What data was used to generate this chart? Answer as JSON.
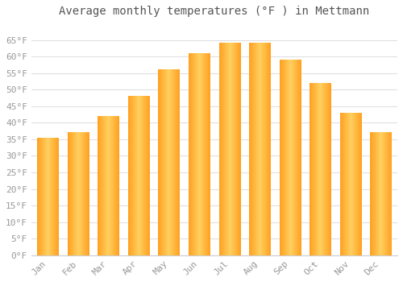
{
  "title": "Average monthly temperatures (°F ) in Mettmann",
  "months": [
    "Jan",
    "Feb",
    "Mar",
    "Apr",
    "May",
    "Jun",
    "Jul",
    "Aug",
    "Sep",
    "Oct",
    "Nov",
    "Dec"
  ],
  "values": [
    35.5,
    37,
    42,
    48,
    56,
    61,
    64,
    64,
    59,
    52,
    43,
    37
  ],
  "bar_color_center": "#FFD060",
  "bar_color_edge": "#FFA020",
  "ylim": [
    0,
    70
  ],
  "yticks": [
    0,
    5,
    10,
    15,
    20,
    25,
    30,
    35,
    40,
    45,
    50,
    55,
    60,
    65
  ],
  "ytick_labels": [
    "0°F",
    "5°F",
    "10°F",
    "15°F",
    "20°F",
    "25°F",
    "30°F",
    "35°F",
    "40°F",
    "45°F",
    "50°F",
    "55°F",
    "60°F",
    "65°F"
  ],
  "grid_color": "#e0e0e0",
  "bg_color": "#ffffff",
  "title_fontsize": 10,
  "tick_fontsize": 8,
  "bar_width": 0.7
}
